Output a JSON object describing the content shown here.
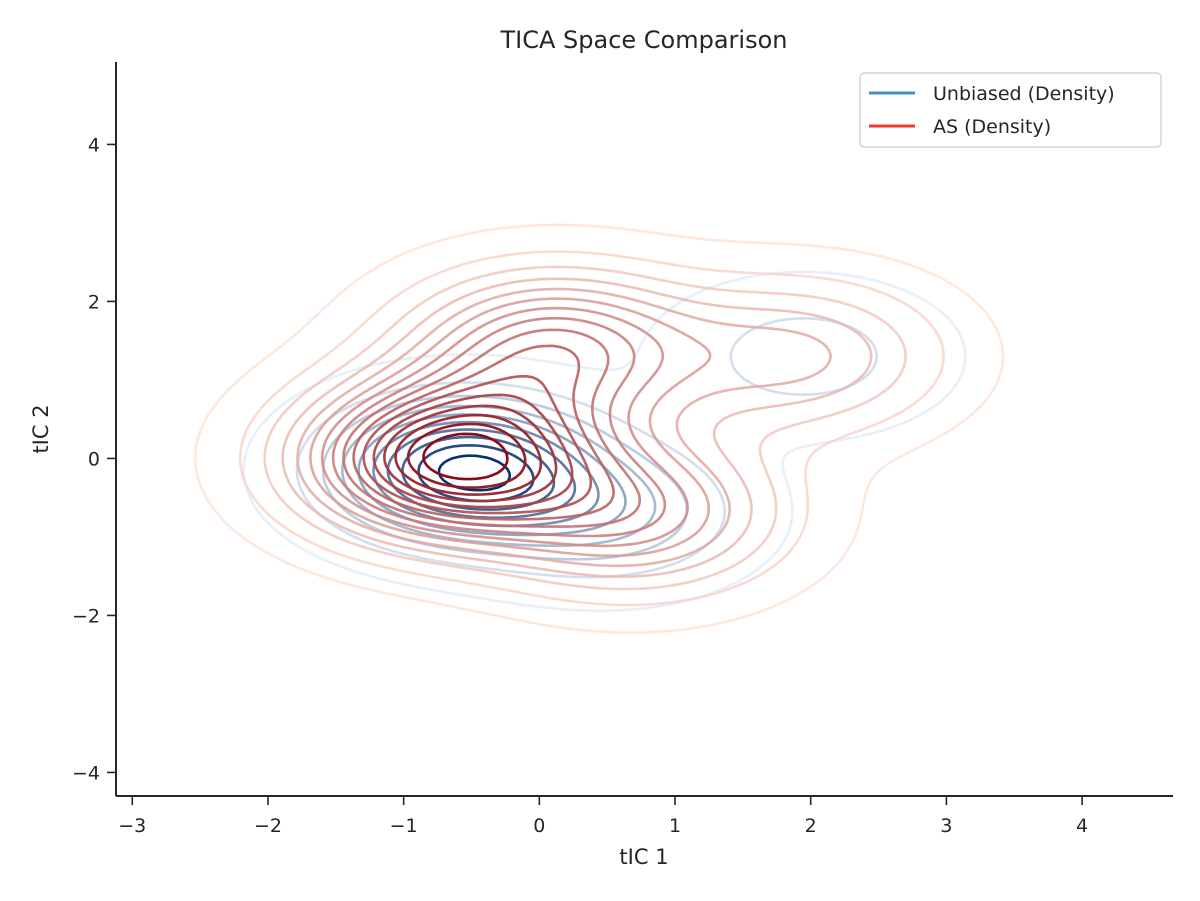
{
  "chart_data": {
    "type": "contour",
    "title": "TICA Space Comparison",
    "xlabel": "tIC 1",
    "ylabel": "tIC 2",
    "xlim": [
      -3.12,
      4.67
    ],
    "ylim": [
      -4.3,
      5.05
    ],
    "xticks": [
      -3,
      -2,
      -1,
      0,
      1,
      2,
      3,
      4
    ],
    "yticks": [
      -4,
      -2,
      0,
      2,
      4
    ],
    "xtick_labels": [
      "−3",
      "−2",
      "−1",
      "0",
      "1",
      "2",
      "3",
      "4"
    ],
    "ytick_labels": [
      "−4",
      "−2",
      "0",
      "2",
      "4"
    ],
    "grid": false,
    "legend_position": "top-right",
    "series": [
      {
        "name": "Unbiased (Density)",
        "color": "#4292c6",
        "colormap": "Blues",
        "levels": 10,
        "peaks": [
          {
            "x": -0.55,
            "y": -0.15,
            "weight": 1.0
          },
          {
            "x": 1.95,
            "y": 1.3,
            "weight": 0.2
          },
          {
            "x": 0.5,
            "y": -0.7,
            "weight": 0.35
          }
        ]
      },
      {
        "name": "AS (Density)",
        "color": "#ef3b2c",
        "colormap": "Reds",
        "levels": 16,
        "peaks": [
          {
            "x": -0.65,
            "y": 0.0,
            "weight": 1.0
          },
          {
            "x": 0.1,
            "y": 1.4,
            "weight": 0.55
          },
          {
            "x": 0.7,
            "y": -0.7,
            "weight": 0.45
          },
          {
            "x": 1.9,
            "y": 1.3,
            "weight": 0.3
          }
        ]
      }
    ]
  }
}
